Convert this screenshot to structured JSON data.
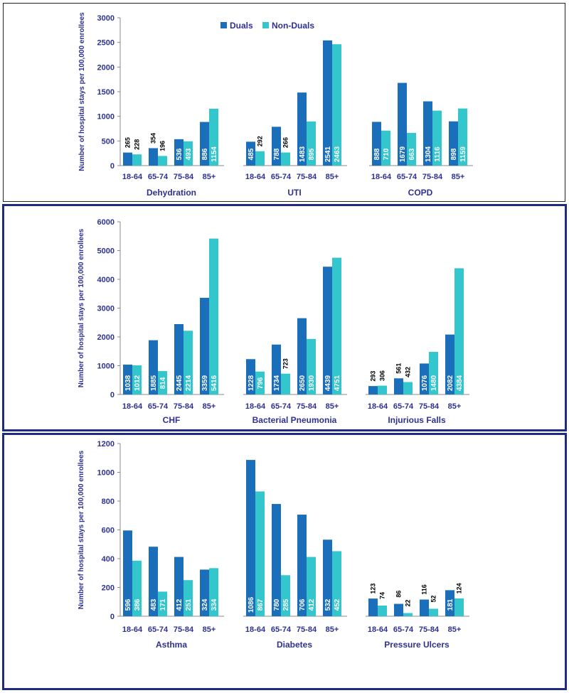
{
  "colors": {
    "duals": "#1b6fba",
    "non_duals": "#33c6cc",
    "axis_text": "#2e3192",
    "frame_thin": "#222222",
    "frame_thick": "#1f2a80"
  },
  "ylabel": "Number of hospital stays per 100,000 enrollees",
  "legend": {
    "duals": "Duals",
    "non_duals": "Non-Duals"
  },
  "age_groups": [
    "18-64",
    "65-74",
    "75-84",
    "85+"
  ],
  "chart_data": [
    {
      "type": "bar",
      "ylabel": "Number of hospital stays per 100,000 enrollees",
      "ylim": [
        0,
        3000
      ],
      "yticks": [
        0,
        500,
        1000,
        1500,
        2000,
        2500,
        3000
      ],
      "legend": [
        "Duals",
        "Non-Duals"
      ],
      "groups": [
        {
          "name": "Dehydration",
          "categories": [
            "18-64",
            "65-74",
            "75-84",
            "85+"
          ],
          "series": [
            {
              "name": "Duals",
              "values": [
                265,
                354,
                536,
                886
              ]
            },
            {
              "name": "Non-Duals",
              "values": [
                228,
                196,
                493,
                1154
              ]
            }
          ]
        },
        {
          "name": "UTI",
          "categories": [
            "18-64",
            "65-74",
            "75-84",
            "85+"
          ],
          "series": [
            {
              "name": "Duals",
              "values": [
                485,
                788,
                1483,
                2541
              ]
            },
            {
              "name": "Non-Duals",
              "values": [
                292,
                266,
                895,
                2463
              ]
            }
          ]
        },
        {
          "name": "COPD",
          "categories": [
            "18-64",
            "65-74",
            "75-84",
            "85+"
          ],
          "series": [
            {
              "name": "Duals",
              "values": [
                888,
                1679,
                1304,
                898
              ]
            },
            {
              "name": "Non-Duals",
              "values": [
                710,
                663,
                1116,
                1159
              ]
            }
          ]
        }
      ]
    },
    {
      "type": "bar",
      "ylabel": "Number of hospital stays per 100,000 enrollees",
      "ylim": [
        0,
        6000
      ],
      "yticks": [
        0,
        1000,
        2000,
        3000,
        4000,
        5000,
        6000
      ],
      "groups": [
        {
          "name": "CHF",
          "categories": [
            "18-64",
            "65-74",
            "75-84",
            "85+"
          ],
          "series": [
            {
              "name": "Duals",
              "values": [
                1038,
                1885,
                2445,
                3359
              ]
            },
            {
              "name": "Non-Duals",
              "values": [
                1012,
                814,
                2214,
                5416
              ]
            }
          ]
        },
        {
          "name": "Bacterial Pneumonia",
          "categories": [
            "18-64",
            "65-74",
            "75-84",
            "85+"
          ],
          "series": [
            {
              "name": "Duals",
              "values": [
                1228,
                1734,
                2650,
                4439
              ]
            },
            {
              "name": "Non-Duals",
              "values": [
                796,
                723,
                1930,
                4751
              ]
            }
          ]
        },
        {
          "name": "Injurious Falls",
          "categories": [
            "18-64",
            "65-74",
            "75-84",
            "85+"
          ],
          "series": [
            {
              "name": "Duals",
              "values": [
                293,
                561,
                1076,
                2082
              ]
            },
            {
              "name": "Non-Duals",
              "values": [
                306,
                432,
                1480,
                4384
              ]
            }
          ]
        }
      ]
    },
    {
      "type": "bar",
      "ylabel": "Number of hospital stays per 100,000 enrollees",
      "ylim": [
        0,
        1200
      ],
      "yticks": [
        0,
        200,
        400,
        600,
        800,
        1000,
        1200
      ],
      "groups": [
        {
          "name": "Asthma",
          "categories": [
            "18-64",
            "65-74",
            "75-84",
            "85+"
          ],
          "series": [
            {
              "name": "Duals",
              "values": [
                596,
                483,
                412,
                324
              ]
            },
            {
              "name": "Non-Duals",
              "values": [
                386,
                171,
                251,
                334
              ]
            }
          ]
        },
        {
          "name": "Diabetes",
          "categories": [
            "18-64",
            "65-74",
            "75-84",
            "85+"
          ],
          "series": [
            {
              "name": "Duals",
              "values": [
                1086,
                780,
                706,
                532
              ]
            },
            {
              "name": "Non-Duals",
              "values": [
                867,
                285,
                412,
                452
              ]
            }
          ]
        },
        {
          "name": "Pressure Ulcers",
          "categories": [
            "18-64",
            "65-74",
            "75-84",
            "85+"
          ],
          "series": [
            {
              "name": "Duals",
              "values": [
                123,
                86,
                116,
                181
              ]
            },
            {
              "name": "Non-Duals",
              "values": [
                74,
                22,
                52,
                124
              ]
            }
          ]
        }
      ]
    }
  ]
}
